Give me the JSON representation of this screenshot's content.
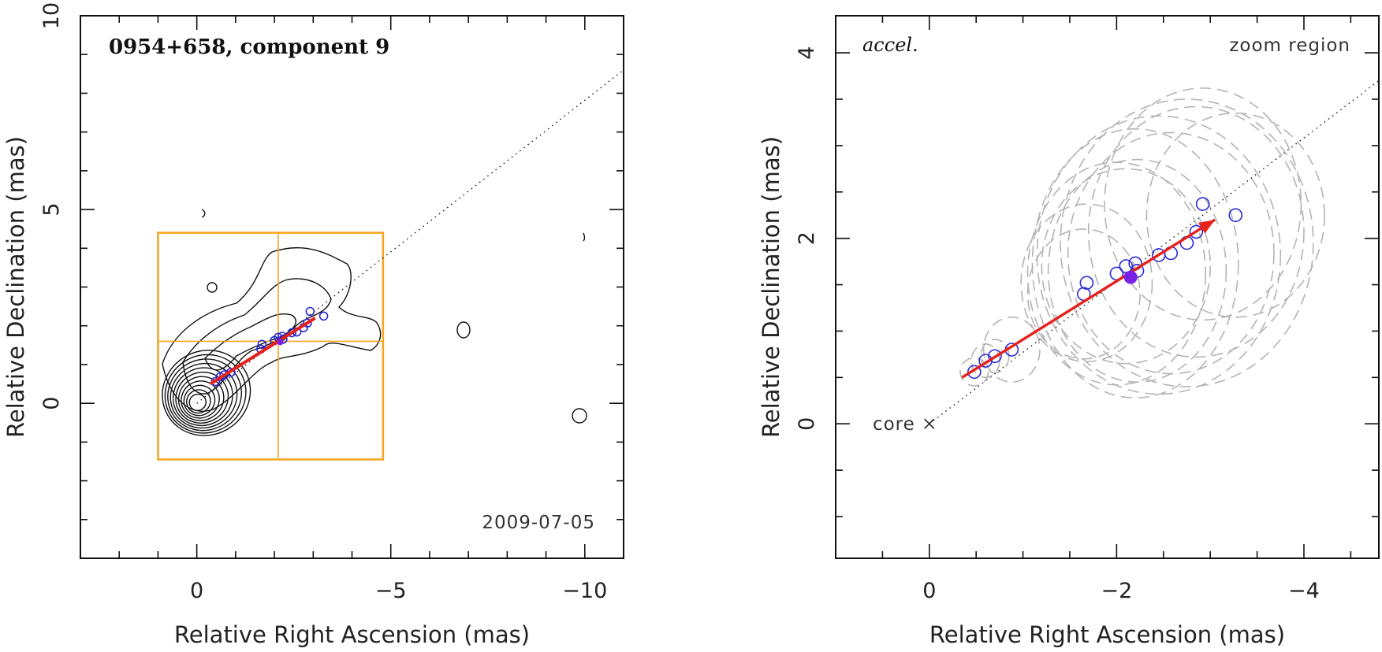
{
  "chart_data": [
    {
      "type": "scatter",
      "panel": "left",
      "title": "0954+658, component 9",
      "date": "2009-07-05",
      "xlabel": "Relative Right Ascension (mas)",
      "ylabel": "Relative Declination (mas)",
      "xlim": [
        3.0,
        -11.0
      ],
      "ylim": [
        -4.0,
        10.0
      ],
      "x_ticks": [
        0,
        -5,
        -10
      ],
      "x_tick_labels": [
        "0",
        "−5",
        "−10"
      ],
      "y_ticks": [
        0,
        5,
        10
      ],
      "y_tick_labels": [
        "0",
        "5",
        "10"
      ],
      "contours": "map of jet emission (contour lines)",
      "zoom_region": {
        "x": [
          1.0,
          -4.8
        ],
        "y": [
          -1.45,
          4.4
        ],
        "cross_x": -2.1,
        "cross_y": 1.6,
        "color": "#f5a623"
      },
      "direction_line": {
        "from": [
          0,
          0
        ],
        "to": [
          -11,
          8.6
        ],
        "style": "dotted"
      },
      "velocity_vector": {
        "from": [
          -0.35,
          0.5
        ],
        "to": [
          -3.05,
          2.2
        ],
        "color": "#e8201a"
      },
      "series": [
        {
          "name": "positions",
          "color": "#2b2bd6",
          "x": [
            -0.48,
            -0.6,
            -0.7,
            -0.88,
            -1.65,
            -1.68,
            -2.0,
            -2.1,
            -2.2,
            -2.22,
            -2.45,
            -2.58,
            -2.75,
            -2.85,
            -2.92,
            -3.27
          ],
          "y": [
            0.56,
            0.68,
            0.73,
            0.8,
            1.4,
            1.52,
            1.62,
            1.7,
            1.73,
            1.65,
            1.82,
            1.84,
            1.95,
            2.07,
            2.37,
            2.25
          ]
        }
      ]
    },
    {
      "type": "scatter",
      "panel": "right",
      "title": "accel.",
      "corner_label": "zoom region",
      "core_label": "core",
      "xlabel": "Relative Right Ascension (mas)",
      "ylabel": "Relative Declination (mas)",
      "xlim": [
        1.0,
        -4.8
      ],
      "ylim": [
        -1.45,
        4.4
      ],
      "x_ticks": [
        0,
        -2,
        -4
      ],
      "x_tick_labels": [
        "0",
        "−2",
        "−4"
      ],
      "y_ticks": [
        0,
        2,
        4
      ],
      "y_tick_labels": [
        "0",
        "2",
        "4"
      ],
      "direction_line": {
        "from": [
          0,
          0
        ],
        "to": [
          -4.8,
          3.7
        ],
        "style": "dotted"
      },
      "velocity_vector": {
        "from": [
          -0.35,
          0.5
        ],
        "to": [
          -3.05,
          2.2
        ],
        "color": "#e8201a"
      },
      "reference_epoch_point": {
        "x": -2.15,
        "y": 1.58,
        "color": "#7a1fe6"
      },
      "series": [
        {
          "name": "positions",
          "color": "#2b2bd6",
          "x": [
            -0.48,
            -0.6,
            -0.7,
            -0.88,
            -1.65,
            -1.68,
            -2.0,
            -2.1,
            -2.2,
            -2.22,
            -2.45,
            -2.58,
            -2.75,
            -2.85,
            -2.92,
            -3.27
          ],
          "y": [
            0.56,
            0.68,
            0.73,
            0.8,
            1.4,
            1.52,
            1.62,
            1.7,
            1.73,
            1.65,
            1.82,
            1.84,
            1.95,
            2.07,
            2.37,
            2.25
          ],
          "size_rx": [
            0.15,
            0.15,
            0.15,
            0.3,
            0.6,
            0.7,
            0.95,
            0.9,
            1.1,
            0.95,
            1.3,
            1.1,
            1.35,
            1.15,
            1.05,
            0.95
          ],
          "size_ry": [
            0.15,
            0.18,
            0.18,
            0.35,
            0.7,
            0.85,
            1.2,
            1.05,
            1.45,
            1.2,
            1.5,
            1.3,
            1.55,
            1.35,
            1.25,
            1.1
          ]
        }
      ]
    }
  ]
}
